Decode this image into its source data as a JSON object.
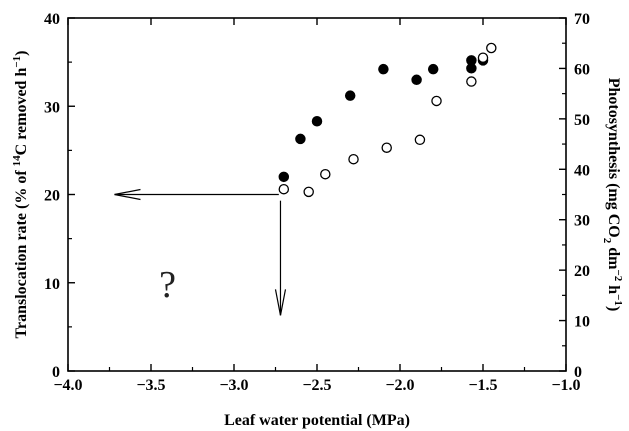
{
  "chart_data": {
    "type": "scatter",
    "title": "",
    "xlabel": "Leaf water potential (MPa)",
    "ylabel_left_parts": [
      "Translocation rate (% of ",
      "14",
      "C removed h",
      "−1",
      ")"
    ],
    "ylabel_right_parts": [
      "Photosynthesis (mg CO",
      "2",
      " dm",
      "−2",
      " h",
      "−1",
      ")"
    ],
    "xlim": [
      -4.0,
      -1.0
    ],
    "ylim_left": [
      0,
      40
    ],
    "ylim_right": [
      0,
      70
    ],
    "x_ticks": [
      -4.0,
      -3.5,
      -3.0,
      -2.5,
      -2.0,
      -1.5,
      -1.0
    ],
    "x_tick_labels": [
      "−4.0",
      "−3.5",
      "−3.0",
      "−2.5",
      "−2.0",
      "−1.5",
      "−1.0"
    ],
    "y_left_ticks": [
      0,
      10,
      20,
      30,
      40
    ],
    "y_left_tick_labels": [
      "0",
      "10",
      "20",
      "30",
      "40"
    ],
    "y_right_ticks": [
      0,
      10,
      20,
      30,
      40,
      50,
      60,
      70
    ],
    "y_right_tick_labels": [
      "0",
      "10",
      "20",
      "30",
      "40",
      "50",
      "60",
      "70"
    ],
    "grid": false,
    "series": [
      {
        "marker": "filled-circle",
        "axis": "left",
        "x": [
          -2.7,
          -2.6,
          -2.5,
          -2.3,
          -2.1,
          -1.9,
          -1.8,
          -1.57,
          -1.57,
          -1.5
        ],
        "y": [
          22.0,
          26.3,
          28.3,
          31.2,
          34.2,
          33.0,
          34.2,
          34.3,
          35.2,
          35.2
        ]
      },
      {
        "marker": "open-circle",
        "axis": "left",
        "x": [
          -2.7,
          -2.55,
          -2.45,
          -2.28,
          -2.08,
          -1.88,
          -1.78,
          -1.57,
          -1.5,
          -1.45
        ],
        "y": [
          20.6,
          20.3,
          22.3,
          24.0,
          25.3,
          26.2,
          30.6,
          32.8,
          35.5,
          36.6
        ]
      }
    ],
    "annotations": {
      "question_mark": "?",
      "arrow_left": {
        "from_x": -2.73,
        "to_x": -3.72,
        "y": 20.0
      },
      "arrow_down": {
        "x": -2.72,
        "from_y": 19.3,
        "to_y": 6.3
      },
      "question_position": {
        "x": -3.4,
        "y": 10.0
      }
    }
  },
  "colors": {
    "filled": "#000000",
    "open_stroke": "#000000",
    "axis": "#000000",
    "arrow": "#000000"
  }
}
